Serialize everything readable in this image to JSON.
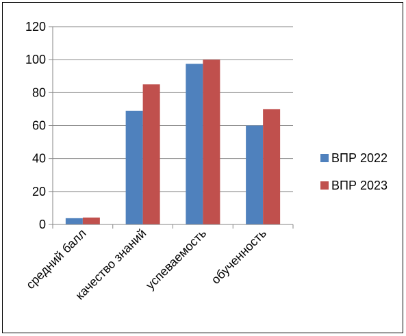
{
  "chart_data": {
    "type": "bar",
    "categories": [
      "средний балл",
      "качество знаний",
      "успеваемость",
      "обученность"
    ],
    "series": [
      {
        "name": "ВПР 2022",
        "color": "#4F81BD",
        "values": [
          3.8,
          69,
          97.5,
          60
        ]
      },
      {
        "name": "ВПР 2023",
        "color": "#C0504D",
        "values": [
          4.2,
          85,
          100,
          70
        ]
      }
    ],
    "ylim": [
      0,
      120
    ],
    "yticks": [
      0,
      20,
      40,
      60,
      80,
      100,
      120
    ],
    "grid": true,
    "legend": "right"
  }
}
